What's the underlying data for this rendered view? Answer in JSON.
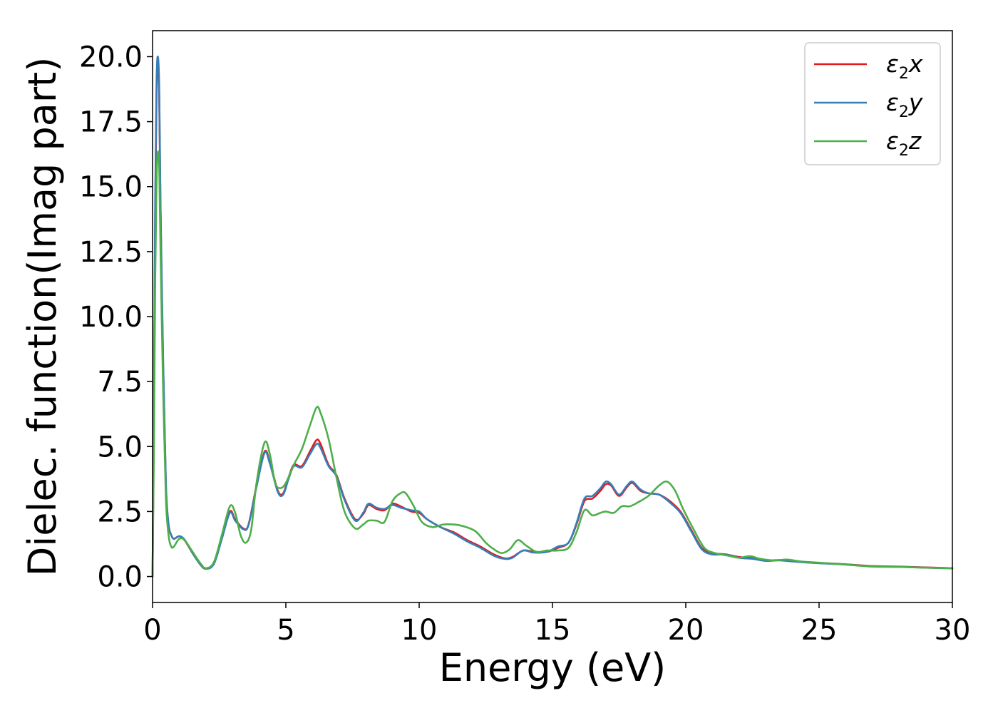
{
  "chart_data": {
    "type": "line",
    "title": "",
    "xlabel": "Energy (eV)",
    "ylabel": "Dielec. function(Imag part)",
    "xlim": [
      0,
      30
    ],
    "ylim": [
      -1,
      21
    ],
    "x_ticks": [
      0,
      5,
      10,
      15,
      20,
      25,
      30
    ],
    "x_tick_labels": [
      "0",
      "5",
      "10",
      "15",
      "20",
      "25",
      "30"
    ],
    "y_ticks": [
      0,
      2.5,
      5,
      7.5,
      10,
      12.5,
      15,
      17.5,
      20
    ],
    "y_tick_labels": [
      "0.0",
      "2.5",
      "5.0",
      "7.5",
      "10.0",
      "12.5",
      "15.0",
      "17.5",
      "20.0"
    ],
    "grid": false,
    "legend_position": "top-right",
    "series": [
      {
        "name": "ε2x",
        "symbol": "ε",
        "subscript": "2",
        "suffix": "x",
        "color": "#e41a1c",
        "points": [
          [
            0,
            0
          ],
          [
            0.05,
            6
          ],
          [
            0.1,
            14
          ],
          [
            0.15,
            18.5
          ],
          [
            0.2,
            19.8
          ],
          [
            0.25,
            18.5
          ],
          [
            0.3,
            14
          ],
          [
            0.4,
            8
          ],
          [
            0.5,
            3.5
          ],
          [
            0.6,
            2.0
          ],
          [
            0.7,
            1.6
          ],
          [
            0.8,
            1.45
          ],
          [
            1.0,
            1.55
          ],
          [
            1.2,
            1.4
          ],
          [
            1.5,
            0.9
          ],
          [
            1.8,
            0.45
          ],
          [
            2.0,
            0.3
          ],
          [
            2.3,
            0.5
          ],
          [
            2.6,
            1.5
          ],
          [
            2.9,
            2.5
          ],
          [
            3.1,
            2.2
          ],
          [
            3.4,
            1.85
          ],
          [
            3.6,
            2.0
          ],
          [
            3.9,
            3.5
          ],
          [
            4.2,
            4.8
          ],
          [
            4.4,
            4.4
          ],
          [
            4.7,
            3.3
          ],
          [
            4.9,
            3.2
          ],
          [
            5.1,
            3.8
          ],
          [
            5.3,
            4.3
          ],
          [
            5.6,
            4.25
          ],
          [
            5.9,
            4.8
          ],
          [
            6.15,
            5.25
          ],
          [
            6.3,
            5.1
          ],
          [
            6.6,
            4.3
          ],
          [
            6.9,
            3.9
          ],
          [
            7.2,
            3.0
          ],
          [
            7.6,
            2.2
          ],
          [
            7.9,
            2.4
          ],
          [
            8.1,
            2.75
          ],
          [
            8.4,
            2.6
          ],
          [
            8.7,
            2.55
          ],
          [
            9.0,
            2.8
          ],
          [
            9.3,
            2.7
          ],
          [
            9.7,
            2.5
          ],
          [
            10.0,
            2.45
          ],
          [
            10.3,
            2.2
          ],
          [
            10.8,
            1.9
          ],
          [
            11.3,
            1.7
          ],
          [
            11.8,
            1.4
          ],
          [
            12.3,
            1.15
          ],
          [
            12.8,
            0.85
          ],
          [
            13.2,
            0.7
          ],
          [
            13.5,
            0.75
          ],
          [
            13.9,
            1.0
          ],
          [
            14.3,
            0.95
          ],
          [
            14.8,
            0.95
          ],
          [
            15.2,
            1.1
          ],
          [
            15.6,
            1.3
          ],
          [
            15.9,
            2.0
          ],
          [
            16.2,
            2.9
          ],
          [
            16.5,
            3.0
          ],
          [
            16.8,
            3.3
          ],
          [
            17.0,
            3.55
          ],
          [
            17.2,
            3.5
          ],
          [
            17.5,
            3.1
          ],
          [
            17.8,
            3.45
          ],
          [
            18.0,
            3.6
          ],
          [
            18.3,
            3.3
          ],
          [
            18.6,
            3.2
          ],
          [
            19.0,
            3.15
          ],
          [
            19.4,
            2.9
          ],
          [
            19.8,
            2.5
          ],
          [
            20.2,
            1.8
          ],
          [
            20.6,
            1.1
          ],
          [
            21.0,
            0.9
          ],
          [
            21.5,
            0.85
          ],
          [
            22.0,
            0.75
          ],
          [
            22.5,
            0.7
          ],
          [
            23.0,
            0.62
          ],
          [
            23.5,
            0.63
          ],
          [
            24.0,
            0.6
          ],
          [
            24.5,
            0.55
          ],
          [
            25.0,
            0.52
          ],
          [
            26.0,
            0.47
          ],
          [
            27.0,
            0.4
          ],
          [
            28.0,
            0.38
          ],
          [
            29.0,
            0.35
          ],
          [
            30.0,
            0.32
          ]
        ]
      },
      {
        "name": "ε2y",
        "symbol": "ε",
        "subscript": "2",
        "suffix": "y",
        "color": "#377eb8",
        "points": [
          [
            0,
            0
          ],
          [
            0.05,
            6.5
          ],
          [
            0.1,
            14.5
          ],
          [
            0.15,
            19
          ],
          [
            0.2,
            20.0
          ],
          [
            0.25,
            18.8
          ],
          [
            0.3,
            14.3
          ],
          [
            0.4,
            8.2
          ],
          [
            0.5,
            3.6
          ],
          [
            0.6,
            2.0
          ],
          [
            0.7,
            1.6
          ],
          [
            0.8,
            1.45
          ],
          [
            1.0,
            1.55
          ],
          [
            1.2,
            1.42
          ],
          [
            1.5,
            0.9
          ],
          [
            1.8,
            0.45
          ],
          [
            2.0,
            0.3
          ],
          [
            2.3,
            0.48
          ],
          [
            2.6,
            1.45
          ],
          [
            2.9,
            2.45
          ],
          [
            3.1,
            2.15
          ],
          [
            3.4,
            1.82
          ],
          [
            3.6,
            1.98
          ],
          [
            3.9,
            3.45
          ],
          [
            4.2,
            4.75
          ],
          [
            4.4,
            4.35
          ],
          [
            4.7,
            3.25
          ],
          [
            4.9,
            3.15
          ],
          [
            5.1,
            3.75
          ],
          [
            5.3,
            4.25
          ],
          [
            5.6,
            4.2
          ],
          [
            5.9,
            4.7
          ],
          [
            6.15,
            5.1
          ],
          [
            6.3,
            4.95
          ],
          [
            6.6,
            4.25
          ],
          [
            6.9,
            3.85
          ],
          [
            7.2,
            2.95
          ],
          [
            7.6,
            2.15
          ],
          [
            7.9,
            2.45
          ],
          [
            8.1,
            2.8
          ],
          [
            8.4,
            2.65
          ],
          [
            8.7,
            2.6
          ],
          [
            9.0,
            2.75
          ],
          [
            9.3,
            2.65
          ],
          [
            9.7,
            2.55
          ],
          [
            10.0,
            2.5
          ],
          [
            10.3,
            2.2
          ],
          [
            10.8,
            1.9
          ],
          [
            11.3,
            1.65
          ],
          [
            11.8,
            1.35
          ],
          [
            12.3,
            1.1
          ],
          [
            12.8,
            0.8
          ],
          [
            13.2,
            0.68
          ],
          [
            13.5,
            0.72
          ],
          [
            13.9,
            1.0
          ],
          [
            14.3,
            0.92
          ],
          [
            14.8,
            0.95
          ],
          [
            15.2,
            1.15
          ],
          [
            15.6,
            1.3
          ],
          [
            15.9,
            2.05
          ],
          [
            16.2,
            3.0
          ],
          [
            16.5,
            3.1
          ],
          [
            16.8,
            3.4
          ],
          [
            17.0,
            3.65
          ],
          [
            17.2,
            3.55
          ],
          [
            17.5,
            3.15
          ],
          [
            17.8,
            3.5
          ],
          [
            18.0,
            3.65
          ],
          [
            18.3,
            3.35
          ],
          [
            18.6,
            3.2
          ],
          [
            19.0,
            3.15
          ],
          [
            19.4,
            2.85
          ],
          [
            19.8,
            2.45
          ],
          [
            20.2,
            1.75
          ],
          [
            20.6,
            1.05
          ],
          [
            21.0,
            0.85
          ],
          [
            21.5,
            0.85
          ],
          [
            22.0,
            0.72
          ],
          [
            22.5,
            0.68
          ],
          [
            23.0,
            0.6
          ],
          [
            23.5,
            0.62
          ],
          [
            24.0,
            0.58
          ],
          [
            24.5,
            0.54
          ],
          [
            25.0,
            0.51
          ],
          [
            26.0,
            0.46
          ],
          [
            27.0,
            0.39
          ],
          [
            28.0,
            0.37
          ],
          [
            29.0,
            0.34
          ],
          [
            30.0,
            0.31
          ]
        ]
      },
      {
        "name": "ε2z",
        "symbol": "ε",
        "subscript": "2",
        "suffix": "z",
        "color": "#4daf4a",
        "points": [
          [
            0,
            0
          ],
          [
            0.05,
            5
          ],
          [
            0.1,
            11.5
          ],
          [
            0.15,
            15.2
          ],
          [
            0.2,
            16.3
          ],
          [
            0.25,
            15.8
          ],
          [
            0.3,
            12.5
          ],
          [
            0.4,
            7
          ],
          [
            0.5,
            3.0
          ],
          [
            0.6,
            1.6
          ],
          [
            0.7,
            1.15
          ],
          [
            0.8,
            1.15
          ],
          [
            1.0,
            1.45
          ],
          [
            1.2,
            1.4
          ],
          [
            1.5,
            0.95
          ],
          [
            1.8,
            0.5
          ],
          [
            2.0,
            0.32
          ],
          [
            2.3,
            0.55
          ],
          [
            2.6,
            1.6
          ],
          [
            2.9,
            2.7
          ],
          [
            3.1,
            2.45
          ],
          [
            3.3,
            1.6
          ],
          [
            3.5,
            1.3
          ],
          [
            3.7,
            1.8
          ],
          [
            3.9,
            3.6
          ],
          [
            4.2,
            5.15
          ],
          [
            4.4,
            4.7
          ],
          [
            4.6,
            3.6
          ],
          [
            4.8,
            3.4
          ],
          [
            5.0,
            3.6
          ],
          [
            5.3,
            4.3
          ],
          [
            5.6,
            4.9
          ],
          [
            5.9,
            5.8
          ],
          [
            6.15,
            6.5
          ],
          [
            6.3,
            6.3
          ],
          [
            6.6,
            5.3
          ],
          [
            6.9,
            3.8
          ],
          [
            7.2,
            2.5
          ],
          [
            7.6,
            1.85
          ],
          [
            7.9,
            2.0
          ],
          [
            8.1,
            2.15
          ],
          [
            8.4,
            2.15
          ],
          [
            8.7,
            2.1
          ],
          [
            9.0,
            2.9
          ],
          [
            9.3,
            3.2
          ],
          [
            9.5,
            3.2
          ],
          [
            9.8,
            2.7
          ],
          [
            10.1,
            2.1
          ],
          [
            10.5,
            1.9
          ],
          [
            10.9,
            2.0
          ],
          [
            11.3,
            2.0
          ],
          [
            11.6,
            1.95
          ],
          [
            12.1,
            1.75
          ],
          [
            12.5,
            1.3
          ],
          [
            12.8,
            1.05
          ],
          [
            13.1,
            0.9
          ],
          [
            13.4,
            1.05
          ],
          [
            13.7,
            1.4
          ],
          [
            14.0,
            1.2
          ],
          [
            14.4,
            0.95
          ],
          [
            14.8,
            1.0
          ],
          [
            15.2,
            1.0
          ],
          [
            15.6,
            1.1
          ],
          [
            15.9,
            1.7
          ],
          [
            16.2,
            2.55
          ],
          [
            16.5,
            2.35
          ],
          [
            16.8,
            2.45
          ],
          [
            17.0,
            2.5
          ],
          [
            17.3,
            2.45
          ],
          [
            17.6,
            2.7
          ],
          [
            17.9,
            2.7
          ],
          [
            18.2,
            2.85
          ],
          [
            18.6,
            3.1
          ],
          [
            19.0,
            3.5
          ],
          [
            19.3,
            3.65
          ],
          [
            19.6,
            3.3
          ],
          [
            19.9,
            2.6
          ],
          [
            20.3,
            1.8
          ],
          [
            20.7,
            1.1
          ],
          [
            21.1,
            0.9
          ],
          [
            21.6,
            0.8
          ],
          [
            22.0,
            0.72
          ],
          [
            22.4,
            0.78
          ],
          [
            22.8,
            0.68
          ],
          [
            23.3,
            0.62
          ],
          [
            23.8,
            0.65
          ],
          [
            24.3,
            0.58
          ],
          [
            25.0,
            0.53
          ],
          [
            26.0,
            0.46
          ],
          [
            27.0,
            0.38
          ],
          [
            28.0,
            0.37
          ],
          [
            29.0,
            0.34
          ],
          [
            30.0,
            0.32
          ]
        ]
      }
    ]
  }
}
